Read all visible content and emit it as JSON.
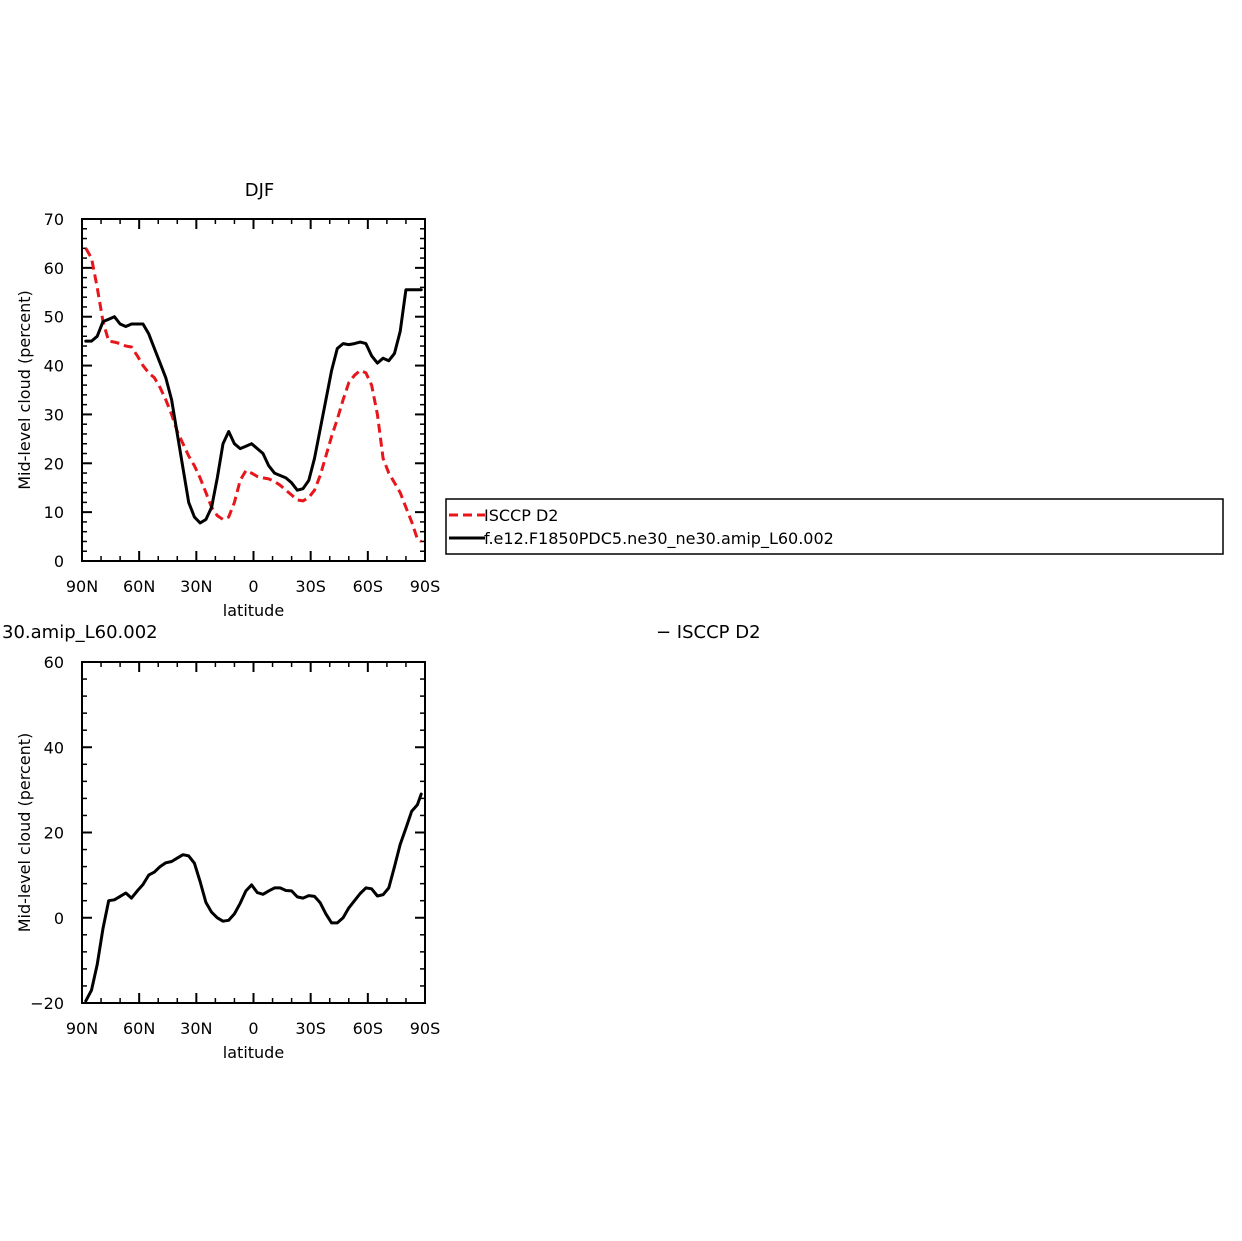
{
  "colors": {
    "isccp": "#e8161b",
    "model": "#000000",
    "background": "#ffffff"
  },
  "chart_data": [
    {
      "type": "line",
      "title": "DJF",
      "xlabel": "latitude",
      "ylabel": "Mid-level cloud (percent)",
      "xlim": [
        90,
        -90
      ],
      "ylim": [
        0,
        70
      ],
      "xticks": [
        {
          "value": 90,
          "label": "90N"
        },
        {
          "value": 60,
          "label": "60N"
        },
        {
          "value": 30,
          "label": "30N"
        },
        {
          "value": 0,
          "label": "0"
        },
        {
          "value": -30,
          "label": "30S"
        },
        {
          "value": -60,
          "label": "60S"
        },
        {
          "value": -90,
          "label": "90S"
        }
      ],
      "yticks": [
        {
          "value": 0,
          "label": "0"
        },
        {
          "value": 10,
          "label": "10"
        },
        {
          "value": 20,
          "label": "20"
        },
        {
          "value": 30,
          "label": "30"
        },
        {
          "value": 40,
          "label": "40"
        },
        {
          "value": 50,
          "label": "50"
        },
        {
          "value": 60,
          "label": "60"
        },
        {
          "value": 70,
          "label": "70"
        }
      ],
      "legend": {
        "placement": "right, outside plot",
        "entries": [
          {
            "label": "ISCCP D2",
            "style": "dashed",
            "color": "#e8161b"
          },
          {
            "label": "f.e12.F1850PDC5.ne30_ne30.amip_L60.002",
            "style": "solid",
            "color": "#000000"
          }
        ]
      },
      "series": [
        {
          "name": "ISCCP D2",
          "style": "dashed",
          "color": "#e8161b",
          "x": [
            88,
            85,
            82,
            79,
            76,
            73,
            70,
            67,
            64,
            61,
            58,
            55,
            52,
            49,
            46,
            43,
            40,
            37,
            34,
            31,
            28,
            25,
            22,
            19,
            16,
            13,
            10,
            7,
            4,
            1,
            -2,
            -5,
            -8,
            -11,
            -14,
            -17,
            -20,
            -23,
            -26,
            -29,
            -32,
            -35,
            -38,
            -41,
            -44,
            -47,
            -50,
            -53,
            -56,
            -59,
            -62,
            -65,
            -68,
            -71,
            -74,
            -77,
            -80,
            -83,
            -86,
            -88
          ],
          "y": [
            64,
            62,
            56,
            49,
            45,
            44.8,
            44.5,
            44,
            43.8,
            42,
            40,
            38.5,
            37.5,
            35.5,
            33,
            30,
            26.5,
            24,
            21.5,
            19.5,
            17,
            14,
            11,
            9.3,
            8.5,
            9,
            12,
            16.5,
            18.5,
            18,
            17.3,
            17,
            16.8,
            16.3,
            15.5,
            14.5,
            13.5,
            12.5,
            12.3,
            13,
            14.5,
            17.5,
            21.5,
            25.5,
            29,
            33,
            36.5,
            38,
            39,
            38.5,
            36,
            30,
            21,
            18,
            16,
            14,
            11,
            8,
            4.5,
            4
          ]
        },
        {
          "name": "f.e12.F1850PDC5.ne30_ne30.amip_L60.002",
          "style": "solid",
          "color": "#000000",
          "x": [
            88,
            85,
            82,
            79,
            76,
            73,
            70,
            67,
            64,
            61,
            58,
            55,
            52,
            49,
            46,
            43,
            40,
            37,
            34,
            31,
            28,
            25,
            22,
            19,
            16,
            13,
            10,
            7,
            4,
            1,
            -2,
            -5,
            -8,
            -11,
            -14,
            -17,
            -20,
            -23,
            -26,
            -29,
            -32,
            -35,
            -38,
            -41,
            -44,
            -47,
            -50,
            -53,
            -56,
            -59,
            -62,
            -65,
            -68,
            -71,
            -74,
            -77,
            -80,
            -83,
            -86,
            -88
          ],
          "y": [
            45,
            45,
            46,
            49,
            49.5,
            50,
            48.5,
            48,
            48.5,
            48.5,
            48.5,
            46.5,
            43.5,
            40.5,
            37.5,
            33,
            26,
            19,
            12,
            9,
            7.8,
            8.5,
            11,
            17,
            24,
            26.5,
            24,
            23,
            23.5,
            24,
            23,
            22,
            19.5,
            18,
            17.5,
            17,
            16,
            14.5,
            14.8,
            16.5,
            21,
            27,
            33,
            39,
            43.5,
            44.5,
            44.3,
            44.5,
            44.8,
            44.5,
            42,
            40.5,
            41.5,
            41,
            42.5,
            47,
            55.5,
            55.5,
            55.5,
            55.5
          ]
        }
      ]
    },
    {
      "type": "line",
      "title": "30.amip_L60.002",
      "title_right": "− ISCCP D2",
      "xlabel": "latitude",
      "ylabel": "Mid-level cloud (percent)",
      "xlim": [
        90,
        -90
      ],
      "ylim": [
        -20,
        60
      ],
      "xticks": [
        {
          "value": 90,
          "label": "90N"
        },
        {
          "value": 60,
          "label": "60N"
        },
        {
          "value": 30,
          "label": "30N"
        },
        {
          "value": 0,
          "label": "0"
        },
        {
          "value": -30,
          "label": "30S"
        },
        {
          "value": -60,
          "label": "60S"
        },
        {
          "value": -90,
          "label": "90S"
        }
      ],
      "yticks": [
        {
          "value": -20,
          "label": "−20"
        },
        {
          "value": 0,
          "label": "0"
        },
        {
          "value": 20,
          "label": "20"
        },
        {
          "value": 40,
          "label": "40"
        },
        {
          "value": 60,
          "label": "60"
        }
      ],
      "series": [
        {
          "style": "solid",
          "color": "#000000",
          "x": [
            88,
            85,
            82,
            79,
            76,
            73,
            70,
            67,
            64,
            61,
            58,
            55,
            52,
            49,
            46,
            43,
            40,
            37,
            34,
            31,
            28,
            25,
            22,
            19,
            16,
            13,
            10,
            7,
            4,
            1,
            -2,
            -5,
            -8,
            -11,
            -14,
            -17,
            -20,
            -23,
            -26,
            -29,
            -32,
            -35,
            -38,
            -41,
            -44,
            -47,
            -50,
            -53,
            -56,
            -59,
            -62,
            -65,
            -68,
            -71,
            -74,
            -77,
            -80,
            -83,
            -86,
            -88
          ],
          "y": [
            -19.5,
            -17,
            -11,
            -2.5,
            4,
            4.2,
            5,
            5.8,
            4.6,
            6.3,
            7.8,
            10,
            10.7,
            12,
            12.9,
            13.2,
            14,
            14.8,
            14.5,
            12.8,
            8.5,
            3.6,
            1.3,
            0,
            -0.8,
            -0.6,
            0.9,
            3.4,
            6.3,
            7.7,
            5.9,
            5.5,
            6.3,
            7,
            7,
            6.4,
            6.3,
            4.9,
            4.6,
            5.2,
            5,
            3.5,
            0.9,
            -1.2,
            -1.2,
            0,
            2.3,
            4,
            5.7,
            7,
            6.8,
            5.1,
            5.4,
            7,
            12,
            17.2,
            21,
            25,
            26.5,
            29
          ]
        }
      ]
    }
  ]
}
